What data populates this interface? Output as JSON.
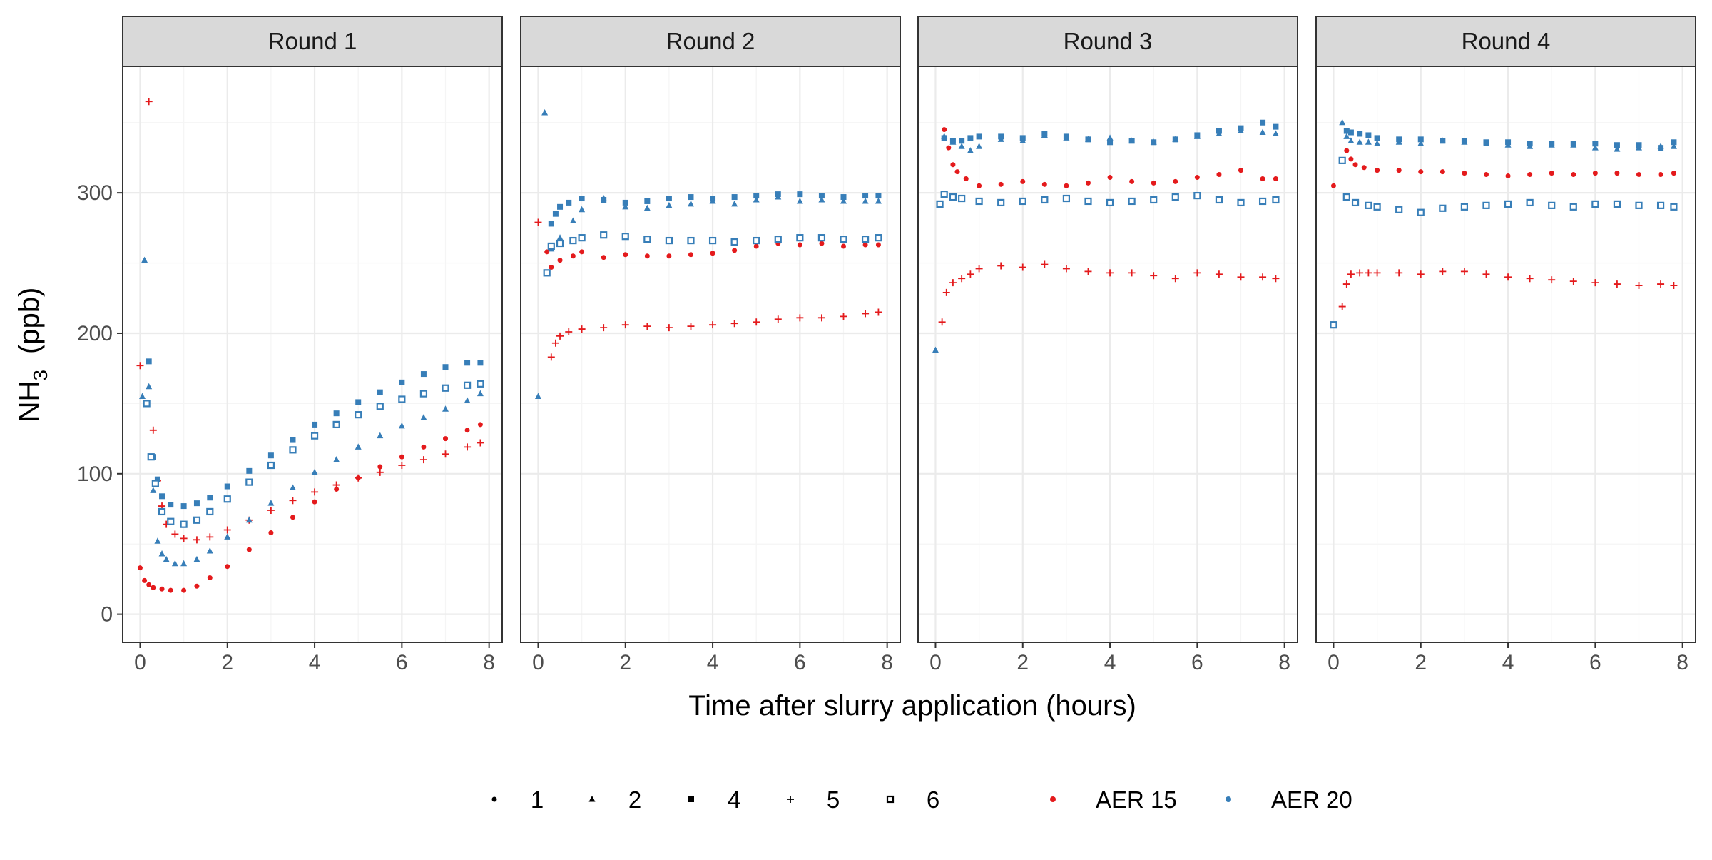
{
  "chart_data": {
    "type": "scatter",
    "facet_variable": "Round",
    "panels": [
      {
        "title": "Round 1",
        "series": [
          {
            "color_group": "AER 15",
            "shape": "1",
            "x": [
              0.0,
              0.1,
              0.2,
              0.3,
              0.5,
              0.7,
              1.0,
              1.3,
              1.6,
              2.0,
              2.5,
              3.0,
              3.5,
              4.0,
              4.5,
              5.0,
              5.5,
              6.0,
              6.5,
              7.0,
              7.5,
              7.8
            ],
            "y": [
              33,
              24,
              21,
              19,
              18,
              17,
              17,
              20,
              26,
              34,
              46,
              58,
              69,
              80,
              89,
              97,
              105,
              112,
              119,
              125,
              131,
              135
            ]
          },
          {
            "color_group": "AER 15",
            "shape": "5",
            "x": [
              0.0,
              0.2,
              0.3,
              0.4,
              0.5,
              0.6,
              0.8,
              1.0,
              1.3,
              1.6,
              2.0,
              2.5,
              3.0,
              3.5,
              4.0,
              4.5,
              5.0,
              5.5,
              6.0,
              6.5,
              7.0,
              7.5,
              7.8
            ],
            "y": [
              177,
              365,
              131,
              95,
              77,
              64,
              57,
              54,
              53,
              55,
              60,
              67,
              74,
              81,
              87,
              92,
              97,
              101,
              106,
              110,
              114,
              119,
              122
            ]
          },
          {
            "color_group": "AER 20",
            "shape": "2",
            "x": [
              0.05,
              0.1,
              0.2,
              0.3,
              0.4,
              0.5,
              0.6,
              0.8,
              1.0,
              1.3,
              1.6,
              2.0,
              2.5,
              3.0,
              3.5,
              4.0,
              4.5,
              5.0,
              5.5,
              6.0,
              6.5,
              7.0,
              7.5,
              7.8
            ],
            "y": [
              155,
              252,
              162,
              88,
              52,
              43,
              39,
              36,
              36,
              39,
              45,
              55,
              67,
              79,
              90,
              101,
              110,
              119,
              127,
              134,
              140,
              146,
              152,
              157
            ]
          },
          {
            "color_group": "AER 20",
            "shape": "4",
            "x": [
              0.2,
              0.3,
              0.4,
              0.5,
              0.7,
              1.0,
              1.3,
              1.6,
              2.0,
              2.5,
              3.0,
              3.5,
              4.0,
              4.5,
              5.0,
              5.5,
              6.0,
              6.5,
              7.0,
              7.5,
              7.8
            ],
            "y": [
              180,
              112,
              96,
              84,
              78,
              77,
              79,
              83,
              91,
              102,
              113,
              124,
              135,
              143,
              151,
              158,
              165,
              171,
              176,
              179,
              179
            ]
          },
          {
            "color_group": "AER 20",
            "shape": "6",
            "x": [
              0.15,
              0.25,
              0.35,
              0.5,
              0.7,
              1.0,
              1.3,
              1.6,
              2.0,
              2.5,
              3.0,
              3.5,
              4.0,
              4.5,
              5.0,
              5.5,
              6.0,
              6.5,
              7.0,
              7.5,
              7.8
            ],
            "y": [
              150,
              112,
              93,
              73,
              66,
              64,
              67,
              73,
              82,
              94,
              106,
              117,
              127,
              135,
              142,
              148,
              153,
              157,
              161,
              163,
              164
            ]
          }
        ]
      },
      {
        "title": "Round 2",
        "series": [
          {
            "color_group": "AER 15",
            "shape": "1",
            "x": [
              0.2,
              0.3,
              0.5,
              0.8,
              1.0,
              1.5,
              2.0,
              2.5,
              3.0,
              3.5,
              4.0,
              4.5,
              5.0,
              5.5,
              6.0,
              6.5,
              7.0,
              7.5,
              7.8
            ],
            "y": [
              258,
              247,
              252,
              255,
              258,
              254,
              256,
              255,
              255,
              256,
              257,
              259,
              262,
              264,
              263,
              264,
              262,
              263,
              263
            ]
          },
          {
            "color_group": "AER 15",
            "shape": "5",
            "x": [
              0.0,
              0.3,
              0.4,
              0.5,
              0.7,
              1.0,
              1.5,
              2.0,
              2.5,
              3.0,
              3.5,
              4.0,
              4.5,
              5.0,
              5.5,
              6.0,
              6.5,
              7.0,
              7.5,
              7.8
            ],
            "y": [
              279,
              183,
              193,
              198,
              201,
              203,
              204,
              206,
              205,
              204,
              205,
              206,
              207,
              208,
              210,
              211,
              211,
              212,
              214,
              215
            ]
          },
          {
            "color_group": "AER 20",
            "shape": "2",
            "x": [
              0.0,
              0.15,
              0.3,
              0.5,
              0.8,
              1.0,
              1.5,
              2.0,
              2.5,
              3.0,
              3.5,
              4.0,
              4.5,
              5.0,
              5.5,
              6.0,
              6.5,
              7.0,
              7.5,
              7.8
            ],
            "y": [
              155,
              357,
              260,
              268,
              280,
              288,
              296,
              290,
              289,
              291,
              292,
              294,
              292,
              295,
              297,
              294,
              295,
              294,
              294,
              294
            ]
          },
          {
            "color_group": "AER 20",
            "shape": "4",
            "x": [
              0.3,
              0.4,
              0.5,
              0.7,
              1.0,
              1.5,
              2.0,
              2.5,
              3.0,
              3.5,
              4.0,
              4.5,
              5.0,
              5.5,
              6.0,
              6.5,
              7.0,
              7.5,
              7.8
            ],
            "y": [
              278,
              285,
              290,
              293,
              296,
              295,
              293,
              294,
              296,
              297,
              296,
              297,
              298,
              299,
              299,
              298,
              297,
              298,
              298
            ]
          },
          {
            "color_group": "AER 20",
            "shape": "6",
            "x": [
              0.2,
              0.3,
              0.5,
              0.8,
              1.0,
              1.5,
              2.0,
              2.5,
              3.0,
              3.5,
              4.0,
              4.5,
              5.0,
              5.5,
              6.0,
              6.5,
              7.0,
              7.5,
              7.8
            ],
            "y": [
              243,
              262,
              264,
              266,
              268,
              270,
              269,
              267,
              266,
              266,
              266,
              265,
              266,
              267,
              268,
              268,
              267,
              267,
              268
            ]
          }
        ]
      },
      {
        "title": "Round 3",
        "series": [
          {
            "color_group": "AER 15",
            "shape": "1",
            "x": [
              0.2,
              0.3,
              0.4,
              0.5,
              0.7,
              1.0,
              1.5,
              2.0,
              2.5,
              3.0,
              3.5,
              4.0,
              4.5,
              5.0,
              5.5,
              6.0,
              6.5,
              7.0,
              7.5,
              7.8
            ],
            "y": [
              345,
              332,
              320,
              315,
              310,
              305,
              306,
              308,
              306,
              305,
              307,
              311,
              308,
              307,
              308,
              311,
              313,
              316,
              310,
              310
            ]
          },
          {
            "color_group": "AER 15",
            "shape": "5",
            "x": [
              0.15,
              0.25,
              0.4,
              0.6,
              0.8,
              1.0,
              1.5,
              2.0,
              2.5,
              3.0,
              3.5,
              4.0,
              4.5,
              5.0,
              5.5,
              6.0,
              6.5,
              7.0,
              7.5,
              7.8
            ],
            "y": [
              208,
              229,
              236,
              239,
              242,
              246,
              248,
              247,
              249,
              246,
              244,
              243,
              243,
              241,
              239,
              243,
              242,
              240,
              240,
              239
            ]
          },
          {
            "color_group": "AER 20",
            "shape": "2",
            "x": [
              0.0,
              0.2,
              0.4,
              0.6,
              0.8,
              1.0,
              1.5,
              2.0,
              2.5,
              3.0,
              3.5,
              4.0,
              4.5,
              5.0,
              5.5,
              6.0,
              6.5,
              7.0,
              7.5,
              7.8
            ],
            "y": [
              188,
              340,
              336,
              333,
              330,
              333,
              338,
              337,
              341,
              339,
              338,
              339,
              337,
              336,
              338,
              340,
              342,
              344,
              343,
              342
            ]
          },
          {
            "color_group": "AER 20",
            "shape": "4",
            "x": [
              0.2,
              0.4,
              0.6,
              0.8,
              1.0,
              1.5,
              2.0,
              2.5,
              3.0,
              3.5,
              4.0,
              4.5,
              5.0,
              5.5,
              6.0,
              6.5,
              7.0,
              7.5,
              7.8
            ],
            "y": [
              339,
              337,
              337,
              339,
              340,
              340,
              339,
              342,
              340,
              338,
              336,
              337,
              336,
              338,
              341,
              344,
              346,
              350,
              347
            ]
          },
          {
            "color_group": "AER 20",
            "shape": "6",
            "x": [
              0.1,
              0.2,
              0.4,
              0.6,
              1.0,
              1.5,
              2.0,
              2.5,
              3.0,
              3.5,
              4.0,
              4.5,
              5.0,
              5.5,
              6.0,
              6.5,
              7.0,
              7.5,
              7.8
            ],
            "y": [
              292,
              299,
              297,
              296,
              294,
              293,
              294,
              295,
              296,
              294,
              293,
              294,
              295,
              297,
              298,
              295,
              293,
              294,
              295
            ]
          }
        ]
      },
      {
        "title": "Round 4",
        "series": [
          {
            "color_group": "AER 15",
            "shape": "1",
            "x": [
              0.0,
              0.3,
              0.4,
              0.5,
              0.7,
              1.0,
              1.5,
              2.0,
              2.5,
              3.0,
              3.5,
              4.0,
              4.5,
              5.0,
              5.5,
              6.0,
              6.5,
              7.0,
              7.5,
              7.8
            ],
            "y": [
              305,
              330,
              324,
              320,
              318,
              316,
              316,
              315,
              315,
              314,
              313,
              312,
              313,
              314,
              313,
              314,
              314,
              313,
              313,
              314
            ]
          },
          {
            "color_group": "AER 15",
            "shape": "5",
            "x": [
              0.2,
              0.3,
              0.4,
              0.6,
              0.8,
              1.0,
              1.5,
              2.0,
              2.5,
              3.0,
              3.5,
              4.0,
              4.5,
              5.0,
              5.5,
              6.0,
              6.5,
              7.0,
              7.5,
              7.8
            ],
            "y": [
              219,
              235,
              242,
              243,
              243,
              243,
              243,
              242,
              244,
              244,
              242,
              240,
              239,
              238,
              237,
              236,
              235,
              234,
              235,
              234
            ]
          },
          {
            "color_group": "AER 20",
            "shape": "2",
            "x": [
              0.2,
              0.3,
              0.4,
              0.6,
              0.8,
              1.0,
              1.5,
              2.0,
              2.5,
              3.0,
              3.5,
              4.0,
              4.5,
              5.0,
              5.5,
              6.0,
              6.5,
              7.0,
              7.5,
              7.8
            ],
            "y": [
              350,
              340,
              337,
              336,
              336,
              335,
              336,
              335,
              337,
              336,
              335,
              334,
              333,
              334,
              334,
              332,
              331,
              332,
              333,
              333
            ]
          },
          {
            "color_group": "AER 20",
            "shape": "4",
            "x": [
              0.3,
              0.4,
              0.6,
              0.8,
              1.0,
              1.5,
              2.0,
              2.5,
              3.0,
              3.5,
              4.0,
              4.5,
              5.0,
              5.5,
              6.0,
              6.5,
              7.0,
              7.5,
              7.8
            ],
            "y": [
              344,
              343,
              342,
              341,
              339,
              338,
              338,
              337,
              337,
              336,
              336,
              335,
              335,
              335,
              335,
              334,
              334,
              332,
              336
            ]
          },
          {
            "color_group": "AER 20",
            "shape": "6",
            "x": [
              0.0,
              0.2,
              0.3,
              0.5,
              0.8,
              1.0,
              1.5,
              2.0,
              2.5,
              3.0,
              3.5,
              4.0,
              4.5,
              5.0,
              5.5,
              6.0,
              6.5,
              7.0,
              7.5,
              7.8
            ],
            "y": [
              206,
              323,
              297,
              293,
              291,
              290,
              288,
              286,
              289,
              290,
              291,
              292,
              293,
              291,
              290,
              292,
              292,
              291,
              291,
              290
            ]
          }
        ]
      }
    ],
    "x_axis": {
      "title": "Time after slurry application (hours)",
      "ticks": [
        0,
        2,
        4,
        6,
        8
      ],
      "range": [
        -0.4,
        8.3
      ]
    },
    "y_axis": {
      "title_main": "NH",
      "title_subscript": "3",
      "title_unit": "(ppb)",
      "ticks": [
        0,
        100,
        200,
        300
      ],
      "range": [
        -20,
        390
      ]
    },
    "legend_shape": {
      "entries": [
        "1",
        "2",
        "4",
        "5",
        "6"
      ]
    },
    "legend_color": {
      "entries": [
        "AER 15",
        "AER 20"
      ]
    },
    "legend_position": "bottom",
    "grid": true,
    "colors": {
      "AER 15": "#e41a1c",
      "AER 20": "#377eb8",
      "strip_fill": "#d9d9d9",
      "grid_major": "#ebebeb",
      "grid_minor": "#f5f5f5",
      "panel_border": "#333333"
    }
  }
}
